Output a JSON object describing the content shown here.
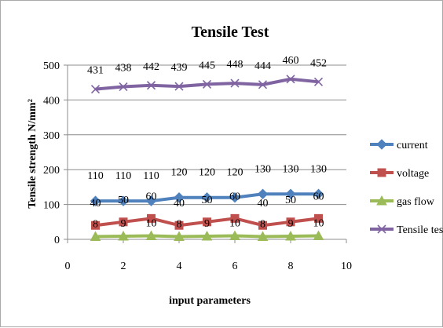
{
  "chart_data": {
    "type": "scatter",
    "title": "Tensile Test",
    "xlabel": "input parameters",
    "ylabel": "Tensile  strength N/mm²",
    "xlim": [
      0,
      10
    ],
    "ylim": [
      0,
      500
    ],
    "x_ticks": [
      0,
      2,
      4,
      6,
      8,
      10
    ],
    "y_ticks": [
      0,
      100,
      200,
      300,
      400,
      500
    ],
    "grid": "horizontal",
    "legend_position": "right",
    "x": [
      1,
      2,
      3,
      4,
      5,
      6,
      7,
      8,
      9
    ],
    "series": [
      {
        "name": "current",
        "color": "#4f81bd",
        "marker": "diamond",
        "values": [
          110,
          110,
          110,
          120,
          120,
          120,
          130,
          130,
          130
        ]
      },
      {
        "name": "voltage",
        "color": "#c0504d",
        "marker": "square",
        "values": [
          40,
          50,
          60,
          40,
          50,
          60,
          40,
          50,
          60
        ]
      },
      {
        "name": "gas flow",
        "color": "#9bbb59",
        "marker": "triangle",
        "values": [
          8,
          9,
          10,
          8,
          9,
          10,
          8,
          9,
          10
        ]
      },
      {
        "name": "Tensile test",
        "color": "#8064a2",
        "marker": "x",
        "values": [
          431,
          438,
          442,
          439,
          445,
          448,
          444,
          460,
          452
        ]
      }
    ]
  }
}
